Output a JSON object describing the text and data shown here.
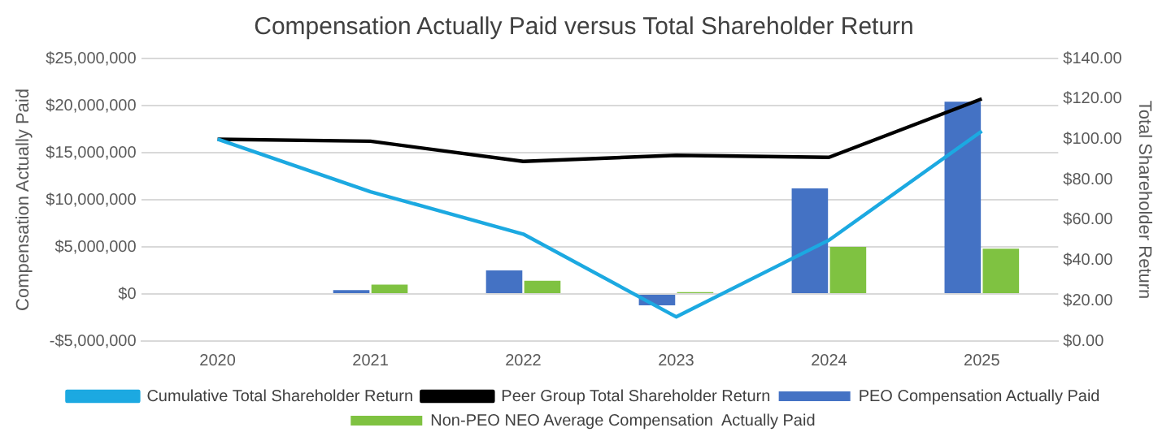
{
  "chart_data": {
    "type": "bar",
    "title": "Compensation Actually Paid versus Total Shareholder Return",
    "ylabel": "Compensation Actually Paid",
    "y2label": "Total Shareholder Return",
    "categories": [
      "2020",
      "2021",
      "2022",
      "2023",
      "2024",
      "2025"
    ],
    "series": [
      {
        "name": "PEO Compensation Actually Paid",
        "color": "#4472c4",
        "values": [
          null,
          400000,
          2500000,
          -1200000,
          11200000,
          20400000
        ]
      },
      {
        "name": "Non-PEO NEO Average Compensation  Actually Paid",
        "color": "#7fc241",
        "values": [
          null,
          1000000,
          1400000,
          200000,
          5000000,
          4800000
        ]
      },
      {
        "name": "Cumulative Total Shareholder Return",
        "type": "line",
        "axis": "y2",
        "color": "#1ca9e1",
        "values": [
          100,
          74,
          53,
          12,
          50,
          104
        ]
      },
      {
        "name": "Peer Group Total Shareholder Return",
        "type": "line",
        "axis": "y2",
        "color": "#000000",
        "values": [
          100,
          99,
          89,
          92,
          91,
          120
        ]
      }
    ],
    "ylim": [
      -5000000,
      25000000
    ],
    "yticks": [
      {
        "value": -5000000,
        "label": "-$5,000,000"
      },
      {
        "value": 0,
        "label": "$0"
      },
      {
        "value": 5000000,
        "label": "$5,000,000"
      },
      {
        "value": 10000000,
        "label": "$10,000,000"
      },
      {
        "value": 15000000,
        "label": "$15,000,000"
      },
      {
        "value": 20000000,
        "label": "$20,000,000"
      },
      {
        "value": 25000000,
        "label": "$25,000,000"
      }
    ],
    "y2lim": [
      0,
      140
    ],
    "y2ticks": [
      {
        "value": 0,
        "label": "$0.00"
      },
      {
        "value": 20,
        "label": "$20.00"
      },
      {
        "value": 40,
        "label": "$40.00"
      },
      {
        "value": 60,
        "label": "$60.00"
      },
      {
        "value": 80,
        "label": "$80.00"
      },
      {
        "value": 100,
        "label": "$100.00"
      },
      {
        "value": 120,
        "label": "$120.00"
      },
      {
        "value": 140,
        "label": "$140.00"
      }
    ],
    "grid": "y",
    "legend": "bottom",
    "marker": "none"
  }
}
